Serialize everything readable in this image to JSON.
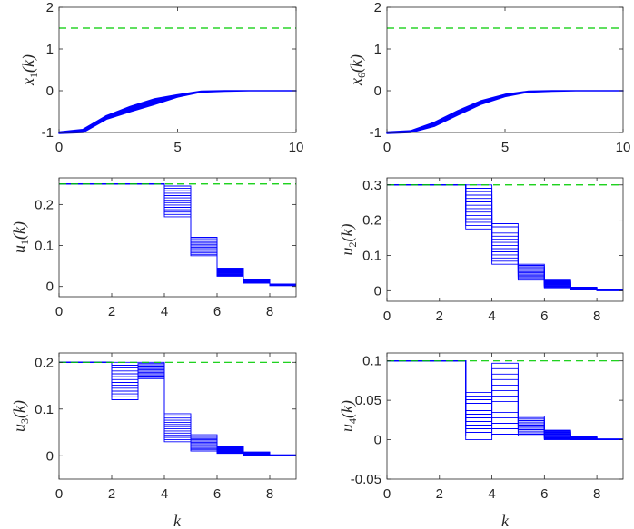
{
  "figure": {
    "colors": {
      "trajectory": "#0000ff",
      "limit": "#00cc00",
      "axis": "#262626"
    },
    "xlabel": "k"
  },
  "chart_data": [
    {
      "id": "x1",
      "type": "line",
      "ylabel_main": "x",
      "ylabel_sub": "1",
      "ylabel_tail": "(k)",
      "xlim": [
        0,
        10
      ],
      "ylim": [
        -1,
        2
      ],
      "xticks": [
        "0",
        "5",
        "10"
      ],
      "xtick_values": [
        0,
        5,
        10
      ],
      "yticks": [
        "-1",
        "0",
        "1",
        "2"
      ],
      "ytick_values": [
        -1,
        0,
        1,
        2
      ],
      "limit_line": 1.5,
      "trajectory_band": {
        "k": [
          0,
          1,
          2,
          3,
          4,
          5,
          6,
          7,
          8,
          9,
          10
        ],
        "lower": [
          -1.02,
          -1.0,
          -0.68,
          -0.5,
          -0.33,
          -0.15,
          -0.03,
          -0.01,
          0,
          0,
          0
        ],
        "upper": [
          -0.99,
          -0.93,
          -0.6,
          -0.38,
          -0.2,
          -0.1,
          -0.01,
          0,
          0,
          0,
          0
        ]
      }
    },
    {
      "id": "x6",
      "type": "line",
      "ylabel_main": "x",
      "ylabel_sub": "6",
      "ylabel_tail": "(k)",
      "xlim": [
        0,
        10
      ],
      "ylim": [
        -1,
        2
      ],
      "xticks": [
        "0",
        "5",
        "10"
      ],
      "xtick_values": [
        0,
        5,
        10
      ],
      "yticks": [
        "-1",
        "0",
        "1",
        "2"
      ],
      "ytick_values": [
        -1,
        0,
        1,
        2
      ],
      "limit_line": 1.5,
      "trajectory_band": {
        "k": [
          0,
          1,
          2,
          3,
          4,
          5,
          6,
          7,
          8,
          9,
          10
        ],
        "lower": [
          -1.02,
          -1.0,
          -0.85,
          -0.58,
          -0.32,
          -0.14,
          -0.03,
          -0.01,
          0,
          0,
          0
        ],
        "upper": [
          -0.99,
          -0.96,
          -0.76,
          -0.48,
          -0.24,
          -0.09,
          -0.01,
          0,
          0,
          0,
          0
        ]
      }
    },
    {
      "id": "u1",
      "type": "stairs",
      "ylabel_main": "u",
      "ylabel_sub": "1",
      "ylabel_tail": "(k)",
      "xlim": [
        0,
        9
      ],
      "ylim": [
        -0.025,
        0.265
      ],
      "xticks": [
        "0",
        "2",
        "4",
        "6",
        "8"
      ],
      "xtick_values": [
        0,
        2,
        4,
        6,
        8
      ],
      "yticks": [
        "0",
        "0.1",
        "0.2"
      ],
      "ytick_values": [
        0,
        0.1,
        0.2
      ],
      "limit_line": 0.25,
      "steps": [
        {
          "k": 0,
          "lo": 0.25,
          "hi": 0.25
        },
        {
          "k": 1,
          "lo": 0.25,
          "hi": 0.25
        },
        {
          "k": 2,
          "lo": 0.25,
          "hi": 0.25
        },
        {
          "k": 3,
          "lo": 0.25,
          "hi": 0.25
        },
        {
          "k": 4,
          "lo": 0.17,
          "hi": 0.245
        },
        {
          "k": 5,
          "lo": 0.075,
          "hi": 0.12
        },
        {
          "k": 6,
          "lo": 0.025,
          "hi": 0.045
        },
        {
          "k": 7,
          "lo": 0.008,
          "hi": 0.018
        },
        {
          "k": 8,
          "lo": 0.002,
          "hi": 0.006
        }
      ]
    },
    {
      "id": "u2",
      "type": "stairs",
      "ylabel_main": "u",
      "ylabel_sub": "2",
      "ylabel_tail": "(k)",
      "xlim": [
        0,
        9
      ],
      "ylim": [
        -0.03,
        0.32
      ],
      "xticks": [
        "0",
        "2",
        "4",
        "6",
        "8"
      ],
      "xtick_values": [
        0,
        2,
        4,
        6,
        8
      ],
      "yticks": [
        "0",
        "0.1",
        "0.2",
        "0.3"
      ],
      "ytick_values": [
        0,
        0.1,
        0.2,
        0.3
      ],
      "limit_line": 0.3,
      "steps": [
        {
          "k": 0,
          "lo": 0.3,
          "hi": 0.3
        },
        {
          "k": 1,
          "lo": 0.3,
          "hi": 0.3
        },
        {
          "k": 2,
          "lo": 0.3,
          "hi": 0.3
        },
        {
          "k": 3,
          "lo": 0.175,
          "hi": 0.3
        },
        {
          "k": 4,
          "lo": 0.075,
          "hi": 0.19
        },
        {
          "k": 5,
          "lo": 0.03,
          "hi": 0.075
        },
        {
          "k": 6,
          "lo": 0.008,
          "hi": 0.03
        },
        {
          "k": 7,
          "lo": 0.002,
          "hi": 0.01
        },
        {
          "k": 8,
          "lo": 0.0,
          "hi": 0.003
        }
      ]
    },
    {
      "id": "u3",
      "type": "stairs",
      "ylabel_main": "u",
      "ylabel_sub": "3",
      "ylabel_tail": "(k)",
      "xlim": [
        0,
        9
      ],
      "ylim": [
        -0.05,
        0.22
      ],
      "xticks": [
        "0",
        "2",
        "4",
        "6",
        "8"
      ],
      "xtick_values": [
        0,
        2,
        4,
        6,
        8
      ],
      "yticks": [
        "0",
        "0.1",
        "0.2"
      ],
      "ytick_values": [
        0,
        0.1,
        0.2
      ],
      "limit_line": 0.2,
      "steps": [
        {
          "k": 0,
          "lo": 0.2,
          "hi": 0.2
        },
        {
          "k": 1,
          "lo": 0.2,
          "hi": 0.2
        },
        {
          "k": 2,
          "lo": 0.12,
          "hi": 0.2
        },
        {
          "k": 3,
          "lo": 0.165,
          "hi": 0.2
        },
        {
          "k": 4,
          "lo": 0.03,
          "hi": 0.09
        },
        {
          "k": 5,
          "lo": 0.01,
          "hi": 0.045
        },
        {
          "k": 6,
          "lo": 0.005,
          "hi": 0.02
        },
        {
          "k": 7,
          "lo": 0.001,
          "hi": 0.008
        },
        {
          "k": 8,
          "lo": 0.0,
          "hi": 0.002
        }
      ]
    },
    {
      "id": "u4",
      "type": "stairs",
      "ylabel_main": "u",
      "ylabel_sub": "4",
      "ylabel_tail": "(k)",
      "xlim": [
        0,
        9
      ],
      "ylim": [
        -0.05,
        0.11
      ],
      "xticks": [
        "0",
        "2",
        "4",
        "6",
        "8"
      ],
      "xtick_values": [
        0,
        2,
        4,
        6,
        8
      ],
      "yticks": [
        "-0.05",
        "0",
        "0.05",
        "0.1"
      ],
      "ytick_values": [
        -0.05,
        0,
        0.05,
        0.1
      ],
      "limit_line": 0.1,
      "steps": [
        {
          "k": 0,
          "lo": 0.1,
          "hi": 0.1
        },
        {
          "k": 1,
          "lo": 0.1,
          "hi": 0.1
        },
        {
          "k": 2,
          "lo": 0.1,
          "hi": 0.1
        },
        {
          "k": 3,
          "lo": 0.0,
          "hi": 0.06
        },
        {
          "k": 4,
          "lo": 0.007,
          "hi": 0.097
        },
        {
          "k": 5,
          "lo": 0.005,
          "hi": 0.03
        },
        {
          "k": 6,
          "lo": 0.0,
          "hi": 0.012
        },
        {
          "k": 7,
          "lo": 0.0,
          "hi": 0.004
        },
        {
          "k": 8,
          "lo": 0.0,
          "hi": 0.001
        }
      ]
    }
  ]
}
